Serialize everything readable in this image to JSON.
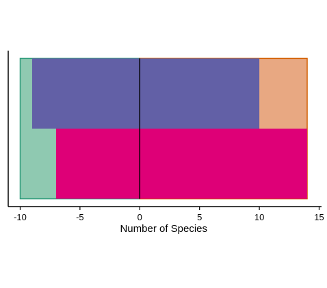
{
  "chart_data": {
    "type": "bar",
    "orientation": "horizontal",
    "xlabel": "Number of Species",
    "ylabel": "",
    "title": "",
    "xlim": [
      -11,
      15.2
    ],
    "ylim": [
      0,
      1
    ],
    "xticks": [
      -10,
      -5,
      0,
      5,
      10,
      15
    ],
    "xtick_labels": [
      "-10",
      "-5",
      "0",
      "5",
      "10",
      "15"
    ],
    "grid": false,
    "legend": "none",
    "background_boxes": [
      {
        "x0": -10,
        "x1": 0,
        "y0": 0.05,
        "y1": 0.95,
        "fill": "#8fc9b1",
        "stroke": "#2f9c7b"
      },
      {
        "x0": 0,
        "x1": 14,
        "y0": 0.05,
        "y1": 0.95,
        "fill": "#e8a882",
        "stroke": "#d35f00"
      }
    ],
    "bars": [
      {
        "x0": -9,
        "x1": 10,
        "y0": 0.5,
        "y1": 0.95,
        "color": "#6260a6"
      },
      {
        "x0": -7,
        "x1": 14,
        "y0": 0.05,
        "y1": 0.5,
        "color": "#de0077"
      }
    ],
    "zero_line": 0
  }
}
